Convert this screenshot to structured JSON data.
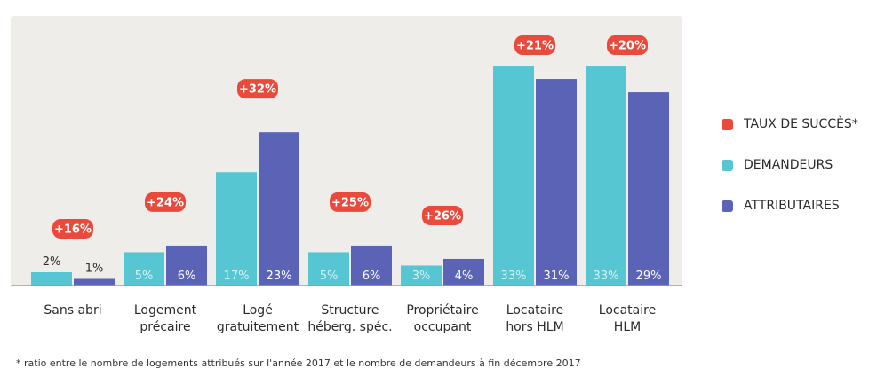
{
  "chart_data": {
    "type": "bar",
    "categories": [
      [
        "Sans abri"
      ],
      [
        "Logement",
        "précaire"
      ],
      [
        "Logé",
        "gratuitement"
      ],
      [
        "Structure",
        "héberg. spéc."
      ],
      [
        "Propriétaire",
        "occupant"
      ],
      [
        "Locataire",
        "hors HLM"
      ],
      [
        "Locataire",
        "HLM"
      ]
    ],
    "series": [
      {
        "name": "DEMANDEURS",
        "values": [
          2,
          5,
          17,
          5,
          3,
          33,
          33
        ],
        "labels": [
          "2%",
          "5%",
          "17%",
          "5%",
          "3%",
          "33%",
          "33%"
        ],
        "color": "#56c6d3"
      },
      {
        "name": "ATTRIBUTAIRES",
        "values": [
          1,
          6,
          23,
          6,
          4,
          31,
          29
        ],
        "labels": [
          "1%",
          "6%",
          "23%",
          "6%",
          "4%",
          "31%",
          "29%"
        ],
        "color": "#5b63b7"
      },
      {
        "name": "TAUX DE SUCCÈS*",
        "values": [
          16,
          24,
          32,
          25,
          26,
          21,
          20
        ],
        "labels": [
          "+16%",
          "+24%",
          "+32%",
          "+25%",
          "+26%",
          "+21%",
          "+20%"
        ],
        "color": "#ea4a3b"
      }
    ],
    "ylim": [
      0,
      35
    ],
    "grid": false,
    "legend_position": "right"
  },
  "legend": {
    "items": [
      {
        "label": "TAUX DE SUCCÈS*",
        "color": "#ea4a3b"
      },
      {
        "label": "DEMANDEURS",
        "color": "#56c6d3"
      },
      {
        "label": "ATTRIBUTAIRES",
        "color": "#5b63b7"
      }
    ]
  },
  "footnote": "* ratio entre le nombre de logements attribués sur l'année 2017 et le nombre de demandeurs à fin décembre 2017",
  "colors": {
    "plot_background": "#efedea",
    "baseline": "#9e9c99"
  }
}
